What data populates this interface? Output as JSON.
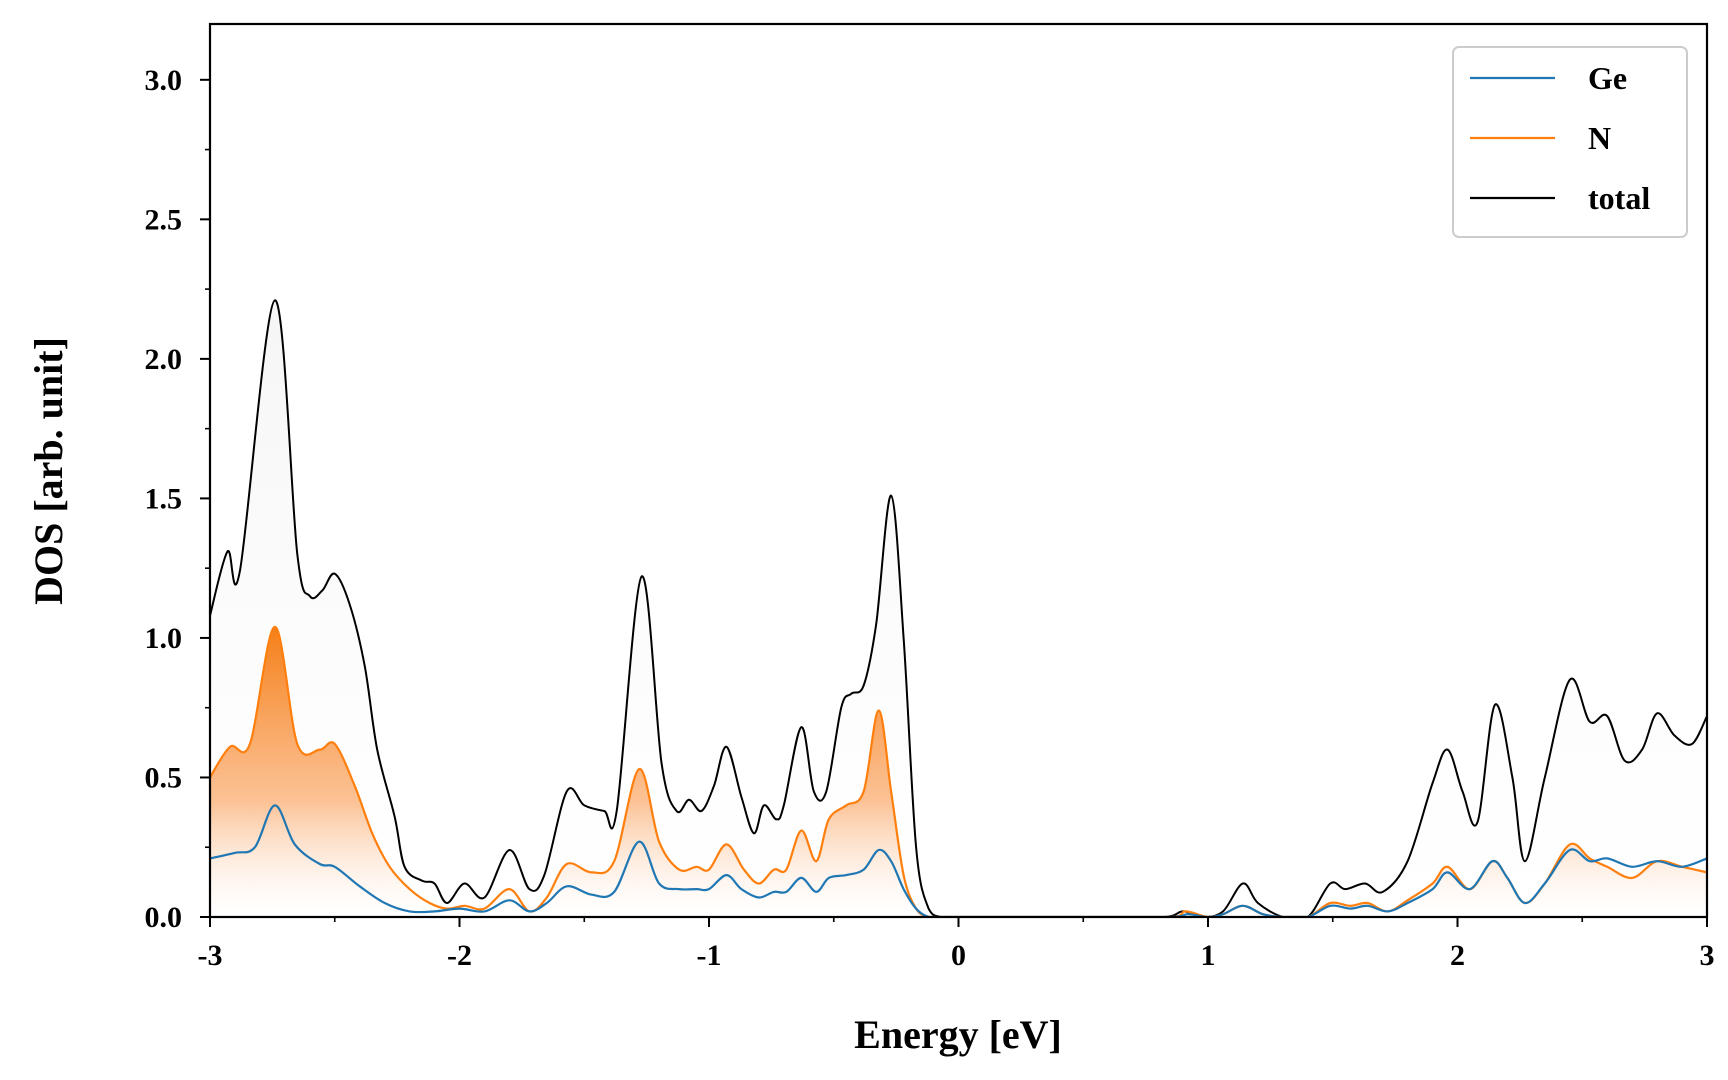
{
  "chart_data": {
    "type": "line",
    "xlabel": "Energy [eV]",
    "ylabel": "DOS [arb. unit]",
    "xlim": [
      -3,
      3
    ],
    "ylim": [
      0,
      3.2
    ],
    "x_ticks": [
      "-3",
      "-2",
      "-1",
      "0",
      "1",
      "2",
      "3"
    ],
    "y_ticks": [
      "0.0",
      "0.5",
      "1.0",
      "1.5",
      "2.0",
      "2.5",
      "3.0"
    ],
    "grid": false,
    "legend_position": "top-right",
    "fills": "N and total curves have light gradient area fill to zero",
    "series": [
      {
        "name": "Ge",
        "color": "#1f77b4",
        "x": [
          -3.0,
          -2.9,
          -2.82,
          -2.74,
          -2.66,
          -2.56,
          -2.5,
          -2.4,
          -2.3,
          -2.2,
          -2.1,
          -2.0,
          -1.9,
          -1.8,
          -1.72,
          -1.65,
          -1.57,
          -1.47,
          -1.38,
          -1.28,
          -1.2,
          -1.12,
          -1.05,
          -1.0,
          -0.93,
          -0.87,
          -0.8,
          -0.74,
          -0.69,
          -0.63,
          -0.57,
          -0.52,
          -0.45,
          -0.38,
          -0.32,
          -0.27,
          -0.22,
          -0.17,
          -0.12,
          -0.07,
          0.0,
          0.5,
          0.85,
          0.92,
          1.0,
          1.06,
          1.14,
          1.22,
          1.3,
          1.4,
          1.49,
          1.57,
          1.64,
          1.72,
          1.8,
          1.9,
          1.96,
          2.05,
          2.14,
          2.2,
          2.27,
          2.35,
          2.45,
          2.53,
          2.6,
          2.7,
          2.8,
          2.9,
          3.0
        ],
        "values": [
          0.21,
          0.23,
          0.25,
          0.4,
          0.26,
          0.19,
          0.18,
          0.11,
          0.05,
          0.02,
          0.02,
          0.03,
          0.02,
          0.06,
          0.02,
          0.05,
          0.11,
          0.08,
          0.09,
          0.27,
          0.12,
          0.1,
          0.1,
          0.1,
          0.15,
          0.1,
          0.07,
          0.09,
          0.09,
          0.14,
          0.09,
          0.14,
          0.15,
          0.17,
          0.24,
          0.2,
          0.1,
          0.03,
          0.0,
          0.0,
          0.0,
          0.0,
          0.0,
          0.01,
          0.0,
          0.01,
          0.04,
          0.01,
          0.0,
          0.0,
          0.04,
          0.03,
          0.04,
          0.02,
          0.05,
          0.1,
          0.16,
          0.1,
          0.2,
          0.14,
          0.05,
          0.12,
          0.24,
          0.2,
          0.21,
          0.18,
          0.2,
          0.18,
          0.21
        ]
      },
      {
        "name": "N",
        "color": "#ff7f0e",
        "x": [
          -3.0,
          -2.92,
          -2.84,
          -2.74,
          -2.65,
          -2.56,
          -2.5,
          -2.42,
          -2.35,
          -2.28,
          -2.2,
          -2.12,
          -2.05,
          -1.98,
          -1.9,
          -1.8,
          -1.72,
          -1.65,
          -1.57,
          -1.47,
          -1.38,
          -1.28,
          -1.2,
          -1.12,
          -1.05,
          -1.0,
          -0.93,
          -0.86,
          -0.8,
          -0.74,
          -0.69,
          -0.63,
          -0.57,
          -0.52,
          -0.45,
          -0.38,
          -0.32,
          -0.27,
          -0.22,
          -0.17,
          -0.12,
          -0.07,
          0.0,
          0.5,
          0.85,
          0.91,
          1.0,
          1.06,
          1.14,
          1.22,
          1.3,
          1.4,
          1.49,
          1.57,
          1.64,
          1.72,
          1.8,
          1.9,
          1.96,
          2.05,
          2.14,
          2.2,
          2.27,
          2.35,
          2.45,
          2.53,
          2.6,
          2.7,
          2.8,
          2.9,
          3.0
        ],
        "values": [
          0.5,
          0.61,
          0.62,
          1.04,
          0.62,
          0.6,
          0.62,
          0.47,
          0.3,
          0.18,
          0.1,
          0.05,
          0.03,
          0.04,
          0.03,
          0.1,
          0.02,
          0.07,
          0.19,
          0.16,
          0.2,
          0.53,
          0.27,
          0.17,
          0.18,
          0.17,
          0.26,
          0.17,
          0.12,
          0.17,
          0.17,
          0.31,
          0.2,
          0.35,
          0.4,
          0.45,
          0.74,
          0.45,
          0.15,
          0.03,
          0.0,
          0.0,
          0.0,
          0.0,
          0.0,
          0.02,
          0.0,
          0.01,
          0.04,
          0.01,
          0.0,
          0.0,
          0.05,
          0.04,
          0.05,
          0.02,
          0.06,
          0.12,
          0.18,
          0.1,
          0.2,
          0.14,
          0.05,
          0.12,
          0.26,
          0.21,
          0.18,
          0.14,
          0.2,
          0.18,
          0.16
        ]
      },
      {
        "name": "total",
        "color": "#000000",
        "x": [
          -3.0,
          -2.93,
          -2.88,
          -2.74,
          -2.65,
          -2.6,
          -2.55,
          -2.5,
          -2.44,
          -2.38,
          -2.33,
          -2.26,
          -2.22,
          -2.15,
          -2.1,
          -2.05,
          -1.98,
          -1.9,
          -1.8,
          -1.72,
          -1.66,
          -1.57,
          -1.5,
          -1.42,
          -1.37,
          -1.27,
          -1.19,
          -1.13,
          -1.08,
          -1.03,
          -0.98,
          -0.93,
          -0.87,
          -0.82,
          -0.78,
          -0.73,
          -0.7,
          -0.63,
          -0.58,
          -0.53,
          -0.47,
          -0.43,
          -0.38,
          -0.33,
          -0.27,
          -0.22,
          -0.17,
          -0.12,
          -0.07,
          0.0,
          0.5,
          0.82,
          0.9,
          0.98,
          1.06,
          1.14,
          1.2,
          1.3,
          1.4,
          1.49,
          1.55,
          1.63,
          1.7,
          1.8,
          1.9,
          1.96,
          2.02,
          2.08,
          2.15,
          2.22,
          2.27,
          2.35,
          2.45,
          2.53,
          2.6,
          2.67,
          2.74,
          2.8,
          2.87,
          2.94,
          3.0
        ],
        "values": [
          1.08,
          1.31,
          1.24,
          2.21,
          1.3,
          1.15,
          1.17,
          1.23,
          1.12,
          0.9,
          0.6,
          0.36,
          0.18,
          0.13,
          0.12,
          0.05,
          0.12,
          0.07,
          0.24,
          0.1,
          0.15,
          0.45,
          0.4,
          0.38,
          0.38,
          1.22,
          0.55,
          0.38,
          0.42,
          0.38,
          0.47,
          0.61,
          0.43,
          0.3,
          0.4,
          0.35,
          0.4,
          0.68,
          0.45,
          0.45,
          0.75,
          0.8,
          0.83,
          1.05,
          1.51,
          1.0,
          0.25,
          0.03,
          0.0,
          0.0,
          0.0,
          0.0,
          0.02,
          0.0,
          0.02,
          0.12,
          0.05,
          0.0,
          0.0,
          0.12,
          0.1,
          0.12,
          0.09,
          0.2,
          0.48,
          0.6,
          0.45,
          0.34,
          0.76,
          0.5,
          0.2,
          0.5,
          0.85,
          0.7,
          0.72,
          0.56,
          0.6,
          0.73,
          0.65,
          0.62,
          0.72
        ]
      }
    ]
  }
}
